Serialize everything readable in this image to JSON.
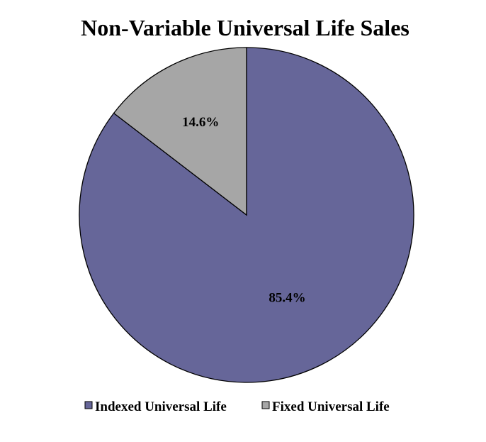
{
  "chart_data": {
    "type": "pie",
    "title": "Non-Variable Universal Life Sales",
    "categories": [
      "Indexed Universal Life",
      "Fixed Universal Life"
    ],
    "values": [
      85.4,
      14.6
    ],
    "data_labels": [
      "85.4%",
      "14.6%"
    ],
    "colors": [
      "#666699",
      "#a6a6a6"
    ],
    "start_angle_deg": 0,
    "direction": "clockwise",
    "legend_position": "bottom"
  }
}
